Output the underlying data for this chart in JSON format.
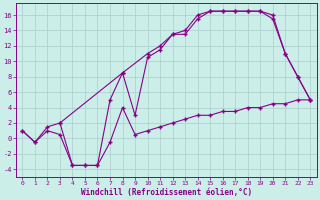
{
  "bg_color": "#cceee8",
  "line_color": "#880088",
  "grid_color": "#aacccc",
  "xlabel": "Windchill (Refroidissement éolien,°C)",
  "xlabel_color": "#880088",
  "tick_color": "#880088",
  "ylim": [
    -5,
    17.5
  ],
  "xlim": [
    -0.5,
    23.5
  ],
  "yticks": [
    -4,
    -2,
    0,
    2,
    4,
    6,
    8,
    10,
    12,
    14,
    16
  ],
  "xticks": [
    0,
    1,
    2,
    3,
    4,
    5,
    6,
    7,
    8,
    9,
    10,
    11,
    12,
    13,
    14,
    15,
    16,
    17,
    18,
    19,
    20,
    21,
    22,
    23
  ],
  "line1_x": [
    0,
    1,
    2,
    3,
    4,
    5,
    6,
    7,
    8,
    9,
    10,
    11,
    12,
    13,
    14,
    15,
    16,
    17,
    18,
    19,
    20,
    21,
    22,
    23
  ],
  "line1_y": [
    1,
    -0.5,
    1,
    0.5,
    -3.5,
    -3.5,
    -3.5,
    5,
    8.5,
    3,
    10.5,
    11.5,
    13.5,
    13.5,
    15.5,
    16.5,
    16.5,
    16.5,
    16.5,
    16.5,
    15.5,
    11,
    8,
    5
  ],
  "line2_x": [
    0,
    1,
    2,
    3,
    4,
    5,
    6,
    7,
    8,
    9,
    10,
    11,
    12,
    13,
    14,
    15,
    16,
    17,
    18,
    19,
    20,
    21,
    22,
    23
  ],
  "line2_y": [
    1,
    -0.5,
    1.5,
    2,
    -3.5,
    -3.5,
    -3.5,
    -0.5,
    4,
    0.5,
    1,
    1.5,
    2,
    2.5,
    3,
    3,
    3.5,
    3.5,
    4,
    4,
    4.5,
    4.5,
    5,
    5
  ],
  "line3_x": [
    3,
    8,
    10,
    11,
    12,
    13,
    14,
    15,
    16,
    17,
    18,
    19,
    20,
    21,
    22,
    23
  ],
  "line3_y": [
    2,
    8.5,
    11,
    12,
    13.5,
    14,
    16,
    16.5,
    16.5,
    16.5,
    16.5,
    16.5,
    16,
    11,
    8,
    5
  ]
}
